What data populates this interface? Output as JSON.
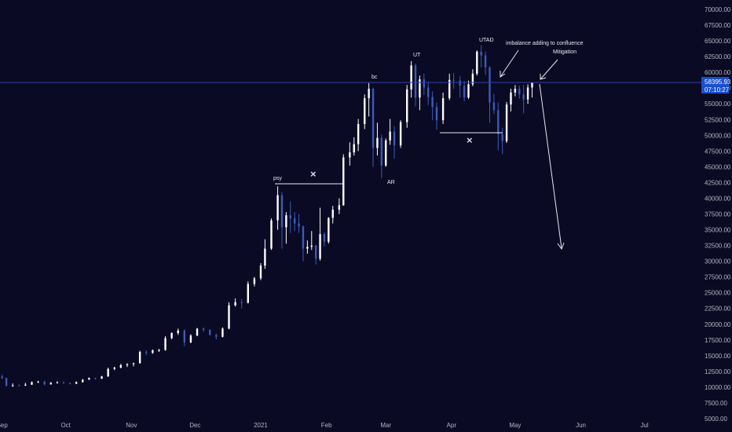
{
  "chart_data": {
    "type": "candlestick",
    "x_axis": {
      "tick_labels": [
        "Sep",
        "Oct",
        "Nov",
        "Dec",
        "2021",
        "Feb",
        "Mar",
        "Apr",
        "May",
        "Jun",
        "Jul"
      ],
      "tick_dates": [
        "2020-09-01",
        "2020-10-01",
        "2020-11-01",
        "2020-12-01",
        "2021-01-01",
        "2021-02-01",
        "2021-03-01",
        "2021-04-01",
        "2021-05-01",
        "2021-06-01",
        "2021-07-01"
      ],
      "range": [
        "2020-08-31",
        "2021-07-26"
      ]
    },
    "y_axis": {
      "range": [
        5000,
        71500
      ],
      "tick_values": [
        5000,
        7500,
        10000,
        12500,
        15000,
        17500,
        20000,
        22500,
        25000,
        27500,
        30000,
        32500,
        35000,
        37500,
        40000,
        42500,
        45000,
        47500,
        50000,
        52500,
        55000,
        57500,
        60000,
        62500,
        65000,
        67500,
        70000
      ],
      "tick_labels": [
        "5000.00",
        "7500.00",
        "10000.00",
        "12500.00",
        "15000.00",
        "17500.00",
        "20000.00",
        "22500.00",
        "25000.00",
        "27500.00",
        "30000.00",
        "32500.00",
        "35000.00",
        "37500.00",
        "40000.00",
        "42500.00",
        "45000.00",
        "47500.00",
        "50000.00",
        "52500.00",
        "55000.00",
        "57500.00",
        "60000.00",
        "62500.00",
        "65000.00",
        "67500.00",
        "70000.00"
      ]
    },
    "candles": [
      [
        "2020-09-01",
        11700,
        12000,
        11300,
        11450
      ],
      [
        "2020-09-03",
        11450,
        11500,
        10100,
        10200
      ],
      [
        "2020-09-06",
        10200,
        10600,
        10050,
        10300
      ],
      [
        "2020-09-09",
        10300,
        10450,
        10150,
        10250
      ],
      [
        "2020-09-12",
        10250,
        10700,
        10200,
        10400
      ],
      [
        "2020-09-15",
        10400,
        10900,
        10350,
        10800
      ],
      [
        "2020-09-18",
        10800,
        11000,
        10650,
        10900
      ],
      [
        "2020-09-21",
        10900,
        11000,
        10300,
        10450
      ],
      [
        "2020-09-24",
        10450,
        10800,
        10400,
        10700
      ],
      [
        "2020-09-27",
        10700,
        10950,
        10600,
        10750
      ],
      [
        "2020-09-30",
        10750,
        10850,
        10550,
        10650
      ],
      [
        "2020-10-03",
        10650,
        10750,
        10450,
        10550
      ],
      [
        "2020-10-06",
        10550,
        10900,
        10500,
        10800
      ],
      [
        "2020-10-09",
        10800,
        11300,
        10750,
        11200
      ],
      [
        "2020-10-12",
        11200,
        11550,
        11150,
        11450
      ],
      [
        "2020-10-15",
        11450,
        11500,
        11200,
        11350
      ],
      [
        "2020-10-18",
        11350,
        11800,
        11300,
        11700
      ],
      [
        "2020-10-21",
        11700,
        13100,
        11650,
        12900
      ],
      [
        "2020-10-24",
        12900,
        13250,
        12700,
        13100
      ],
      [
        "2020-10-27",
        13100,
        13700,
        13000,
        13500
      ],
      [
        "2020-10-30",
        13500,
        13800,
        13200,
        13650
      ],
      [
        "2020-11-02",
        13650,
        13900,
        13300,
        13800
      ],
      [
        "2020-11-05",
        13800,
        15800,
        13750,
        15600
      ],
      [
        "2020-11-08",
        15600,
        15900,
        15100,
        15450
      ],
      [
        "2020-11-11",
        15450,
        16000,
        15300,
        15850
      ],
      [
        "2020-11-14",
        15850,
        16100,
        15600,
        15900
      ],
      [
        "2020-11-17",
        15900,
        18100,
        15800,
        17800
      ],
      [
        "2020-11-20",
        17800,
        18700,
        17600,
        18600
      ],
      [
        "2020-11-23",
        18600,
        19300,
        18300,
        19000
      ],
      [
        "2020-11-26",
        19000,
        19200,
        16500,
        17100
      ],
      [
        "2020-11-29",
        17100,
        18400,
        17000,
        18200
      ],
      [
        "2020-12-02",
        18200,
        19400,
        18100,
        19300
      ],
      [
        "2020-12-05",
        19300,
        19450,
        18800,
        19100
      ],
      [
        "2020-12-08",
        19100,
        19200,
        18200,
        18300
      ],
      [
        "2020-12-11",
        18300,
        18500,
        17600,
        18000
      ],
      [
        "2020-12-14",
        18000,
        19500,
        17900,
        19300
      ],
      [
        "2020-12-17",
        19300,
        23500,
        19200,
        23000
      ],
      [
        "2020-12-20",
        23000,
        24100,
        22800,
        23500
      ],
      [
        "2020-12-23",
        23500,
        24000,
        22500,
        23400
      ],
      [
        "2020-12-26",
        23400,
        26800,
        23300,
        26400
      ],
      [
        "2020-12-29",
        26400,
        27500,
        26000,
        27300
      ],
      [
        "2021-01-01",
        27300,
        29700,
        27000,
        29300
      ],
      [
        "2021-01-03",
        29300,
        33500,
        28800,
        32000
      ],
      [
        "2021-01-06",
        32000,
        36800,
        31800,
        36500
      ],
      [
        "2021-01-09",
        36500,
        41900,
        35000,
        40500
      ],
      [
        "2021-01-11",
        40500,
        41000,
        32000,
        35400
      ],
      [
        "2021-01-13",
        35400,
        37800,
        32800,
        37300
      ],
      [
        "2021-01-15",
        37300,
        39500,
        34500,
        36800
      ],
      [
        "2021-01-17",
        36800,
        37800,
        34800,
        36000
      ],
      [
        "2021-01-19",
        36000,
        37500,
        34500,
        35500
      ],
      [
        "2021-01-21",
        35500,
        35700,
        30000,
        32000
      ],
      [
        "2021-01-23",
        32000,
        33300,
        31200,
        32300
      ],
      [
        "2021-01-25",
        32300,
        34800,
        31800,
        32500
      ],
      [
        "2021-01-27",
        32500,
        32600,
        29500,
        30400
      ],
      [
        "2021-01-29",
        30400,
        38500,
        30100,
        34300
      ],
      [
        "2021-01-31",
        34300,
        34600,
        32300,
        33100
      ],
      [
        "2021-02-02",
        33100,
        37000,
        32800,
        36900
      ],
      [
        "2021-02-04",
        36900,
        38800,
        36000,
        38200
      ],
      [
        "2021-02-07",
        38200,
        40000,
        37500,
        38900
      ],
      [
        "2021-02-09",
        38900,
        47000,
        38800,
        46500
      ],
      [
        "2021-02-12",
        46500,
        48900,
        45200,
        47300
      ],
      [
        "2021-02-14",
        47300,
        49700,
        46800,
        48600
      ],
      [
        "2021-02-16",
        48600,
        52600,
        47500,
        51800
      ],
      [
        "2021-02-19",
        51800,
        56500,
        51000,
        55900
      ],
      [
        "2021-02-21",
        55900,
        58300,
        53000,
        57400
      ],
      [
        "2021-02-23",
        57400,
        57600,
        45000,
        48000
      ],
      [
        "2021-02-25",
        48000,
        52000,
        46800,
        49600
      ],
      [
        "2021-02-27",
        49600,
        50100,
        43200,
        45200
      ],
      [
        "2021-03-01",
        45200,
        49500,
        45000,
        49200
      ],
      [
        "2021-03-03",
        49200,
        52600,
        48500,
        50600
      ],
      [
        "2021-03-05",
        50600,
        51500,
        46300,
        48400
      ],
      [
        "2021-03-08",
        48400,
        52400,
        48000,
        52100
      ],
      [
        "2021-03-11",
        52100,
        58000,
        51200,
        57300
      ],
      [
        "2021-03-13",
        57300,
        61800,
        56000,
        61100
      ],
      [
        "2021-03-15",
        61100,
        61400,
        54600,
        56000
      ],
      [
        "2021-03-17",
        56000,
        59500,
        54000,
        58900
      ],
      [
        "2021-03-19",
        58900,
        59800,
        56400,
        57600
      ],
      [
        "2021-03-21",
        57600,
        58500,
        54800,
        56100
      ],
      [
        "2021-03-23",
        56100,
        57000,
        52400,
        54500
      ],
      [
        "2021-03-25",
        54500,
        55200,
        50900,
        52400
      ],
      [
        "2021-03-28",
        52400,
        56800,
        51800,
        55900
      ],
      [
        "2021-03-31",
        55900,
        59800,
        55600,
        58800
      ],
      [
        "2021-04-02",
        58800,
        59900,
        57400,
        58700
      ],
      [
        "2021-04-05",
        58700,
        59400,
        56000,
        57900
      ],
      [
        "2021-04-07",
        57900,
        58600,
        55400,
        56000
      ],
      [
        "2021-04-09",
        56000,
        58700,
        55800,
        58100
      ],
      [
        "2021-04-11",
        58100,
        60500,
        57800,
        59800
      ],
      [
        "2021-04-13",
        59800,
        63500,
        59500,
        63300
      ],
      [
        "2021-04-15",
        63300,
        64300,
        60800,
        62700
      ],
      [
        "2021-04-17",
        62700,
        63300,
        59600,
        60800
      ],
      [
        "2021-04-19",
        60800,
        61000,
        52000,
        55200
      ],
      [
        "2021-04-21",
        55200,
        56600,
        53400,
        54000
      ],
      [
        "2021-04-23",
        54000,
        55200,
        47600,
        50200
      ],
      [
        "2021-04-25",
        50200,
        51200,
        47000,
        49100
      ],
      [
        "2021-04-27",
        49100,
        55300,
        48800,
        54900
      ],
      [
        "2021-04-29",
        54900,
        57400,
        53800,
        56800
      ],
      [
        "2021-05-01",
        56800,
        58000,
        56200,
        57400
      ],
      [
        "2021-05-03",
        57400,
        57900,
        55800,
        56500
      ],
      [
        "2021-05-05",
        56500,
        58000,
        53500,
        55700
      ],
      [
        "2021-05-07",
        55700,
        58100,
        55000,
        57600
      ],
      [
        "2021-05-09",
        57600,
        58400,
        56000,
        58400
      ]
    ],
    "current_price_label": "58395.93",
    "countdown_label": "07:10:27",
    "annotations": {
      "psy": "psy",
      "ar": "AR",
      "bc": "bc",
      "ut": "UT",
      "utad": "UTAD",
      "imbalance": "imbalance adding to confluence",
      "mitigation": "Mitigation"
    },
    "cross_marks": [
      "×",
      "×"
    ],
    "colors": {
      "background": "#0a0a24",
      "candle_up": "#ffffff",
      "candle_down": "#3d5ab8",
      "price_line": "#2d40a8",
      "price_label_bg": "#1a4fd0",
      "annotation": "#e8e8f0",
      "axis_text": "#b4b4c2"
    }
  }
}
